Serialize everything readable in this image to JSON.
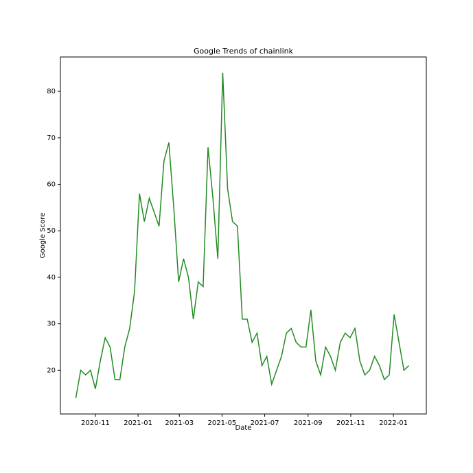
{
  "chart_data": {
    "type": "line",
    "title": "Google Trends of chainlink",
    "x_label": "Date",
    "y_label": "Google Score",
    "x": [
      "2020-10-04",
      "2020-10-11",
      "2020-10-18",
      "2020-10-25",
      "2020-11-01",
      "2020-11-08",
      "2020-11-15",
      "2020-11-22",
      "2020-11-29",
      "2020-12-06",
      "2020-12-13",
      "2020-12-20",
      "2020-12-27",
      "2021-01-03",
      "2021-01-10",
      "2021-01-17",
      "2021-01-24",
      "2021-01-31",
      "2021-02-07",
      "2021-02-14",
      "2021-02-21",
      "2021-02-28",
      "2021-03-07",
      "2021-03-14",
      "2021-03-21",
      "2021-03-28",
      "2021-04-04",
      "2021-04-11",
      "2021-04-18",
      "2021-04-25",
      "2021-05-02",
      "2021-05-09",
      "2021-05-16",
      "2021-05-23",
      "2021-05-30",
      "2021-06-06",
      "2021-06-13",
      "2021-06-20",
      "2021-06-27",
      "2021-07-04",
      "2021-07-11",
      "2021-07-18",
      "2021-07-25",
      "2021-08-01",
      "2021-08-08",
      "2021-08-15",
      "2021-08-22",
      "2021-08-29",
      "2021-09-05",
      "2021-09-12",
      "2021-09-19",
      "2021-09-26",
      "2021-10-03",
      "2021-10-10",
      "2021-10-17",
      "2021-10-24",
      "2021-10-31",
      "2021-11-07",
      "2021-11-14",
      "2021-11-21",
      "2021-11-28",
      "2021-12-05",
      "2021-12-12",
      "2021-12-19",
      "2021-12-26",
      "2022-01-02",
      "2022-01-09",
      "2022-01-16",
      "2022-01-23"
    ],
    "series": [
      {
        "name": "chainlink",
        "color": "#228b22",
        "values": [
          14,
          20,
          19,
          20,
          16,
          22,
          27,
          25,
          18,
          18,
          25,
          29,
          37,
          58,
          52,
          57,
          54,
          51,
          65,
          69,
          55,
          39,
          44,
          40,
          31,
          39,
          38,
          68,
          57,
          44,
          84,
          59,
          52,
          51,
          31,
          31,
          26,
          28,
          21,
          23,
          17,
          20,
          23,
          28,
          29,
          26,
          25,
          25,
          33,
          22,
          19,
          25,
          23,
          20,
          26,
          28,
          27,
          29,
          22,
          19,
          20,
          23,
          21,
          18,
          19,
          32,
          26,
          20,
          21
        ]
      }
    ],
    "xlim": [
      "2020-09-12",
      "2022-02-17"
    ],
    "xticks": [
      {
        "value": "2020-11-01",
        "label": "2020-11"
      },
      {
        "value": "2021-01-01",
        "label": "2021-01"
      },
      {
        "value": "2021-03-01",
        "label": "2021-03"
      },
      {
        "value": "2021-05-01",
        "label": "2021-05"
      },
      {
        "value": "2021-07-01",
        "label": "2021-07"
      },
      {
        "value": "2021-09-01",
        "label": "2021-09"
      },
      {
        "value": "2021-11-01",
        "label": "2021-11"
      },
      {
        "value": "2022-01-01",
        "label": "2022-01"
      }
    ],
    "ylim": [
      10.6,
      87.4
    ],
    "yticks": [
      20,
      30,
      40,
      50,
      60,
      70,
      80
    ],
    "grid": false
  }
}
